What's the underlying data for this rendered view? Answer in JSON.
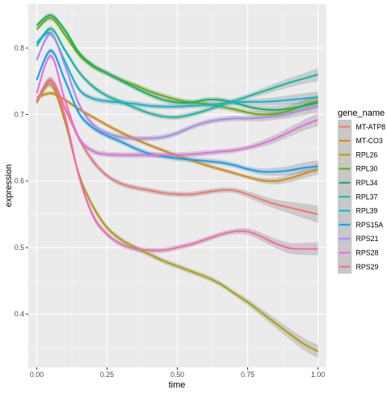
{
  "chart_data": {
    "type": "line",
    "xlabel": "time",
    "ylabel": "expression",
    "xlim": [
      -0.03,
      1.03
    ],
    "ylim": [
      0.32,
      0.866
    ],
    "x_ticks": [
      "0.00",
      "0.25",
      "0.50",
      "0.75",
      "1.00"
    ],
    "x_tick_values": [
      0,
      0.25,
      0.5,
      0.75,
      1.0
    ],
    "y_ticks": [
      "0.4",
      "0.5",
      "0.6",
      "0.7",
      "0.8"
    ],
    "y_tick_values": [
      0.4,
      0.5,
      0.6,
      0.7,
      0.8
    ],
    "grid": true,
    "background": "#ebebeb",
    "legend": {
      "title": "gene_name",
      "position": "right"
    },
    "x": [
      0.0,
      0.05,
      0.1,
      0.15,
      0.2,
      0.25,
      0.3,
      0.35,
      0.4,
      0.45,
      0.5,
      0.55,
      0.6,
      0.65,
      0.7,
      0.75,
      0.8,
      0.85,
      0.9,
      0.95,
      1.0
    ],
    "series": [
      {
        "name": "MT-ATP8",
        "color": "#F8766D",
        "values": [
          0.72,
          0.752,
          0.71,
          0.664,
          0.63,
          0.608,
          0.596,
          0.59,
          0.586,
          0.582,
          0.58,
          0.58,
          0.583,
          0.586,
          0.586,
          0.58,
          0.572,
          0.565,
          0.56,
          0.555,
          0.55
        ],
        "band": [
          0.004,
          0.005,
          0.005,
          0.005,
          0.005,
          0.004,
          0.004,
          0.004,
          0.004,
          0.004,
          0.004,
          0.004,
          0.004,
          0.004,
          0.004,
          0.005,
          0.006,
          0.007,
          0.009,
          0.011,
          0.013
        ]
      },
      {
        "name": "MT-CO3",
        "color": "#DB8E00",
        "values": [
          0.725,
          0.732,
          0.722,
          0.708,
          0.696,
          0.684,
          0.673,
          0.663,
          0.654,
          0.646,
          0.638,
          0.631,
          0.624,
          0.618,
          0.612,
          0.606,
          0.601,
          0.6,
          0.604,
          0.611,
          0.618
        ],
        "band": [
          0.003,
          0.003,
          0.003,
          0.003,
          0.003,
          0.003,
          0.003,
          0.003,
          0.003,
          0.003,
          0.003,
          0.003,
          0.003,
          0.003,
          0.003,
          0.003,
          0.004,
          0.005,
          0.006,
          0.007,
          0.008
        ]
      },
      {
        "name": "RPL26",
        "color": "#AEA200",
        "values": [
          0.718,
          0.745,
          0.69,
          0.61,
          0.562,
          0.53,
          0.512,
          0.5,
          0.49,
          0.48,
          0.472,
          0.464,
          0.456,
          0.446,
          0.432,
          0.418,
          0.402,
          0.386,
          0.37,
          0.355,
          0.344
        ],
        "band": [
          0.004,
          0.005,
          0.005,
          0.005,
          0.005,
          0.004,
          0.004,
          0.004,
          0.004,
          0.004,
          0.004,
          0.004,
          0.004,
          0.004,
          0.004,
          0.005,
          0.006,
          0.007,
          0.008,
          0.009,
          0.01
        ]
      },
      {
        "name": "RPL30",
        "color": "#64B200",
        "values": [
          0.828,
          0.845,
          0.82,
          0.79,
          0.772,
          0.762,
          0.752,
          0.744,
          0.735,
          0.728,
          0.722,
          0.718,
          0.716,
          0.712,
          0.708,
          0.703,
          0.7,
          0.701,
          0.706,
          0.714,
          0.72
        ],
        "band": [
          0.003,
          0.004,
          0.004,
          0.004,
          0.004,
          0.004,
          0.004,
          0.004,
          0.004,
          0.004,
          0.004,
          0.004,
          0.004,
          0.004,
          0.004,
          0.004,
          0.005,
          0.006,
          0.007,
          0.008,
          0.009
        ]
      },
      {
        "name": "RPL34",
        "color": "#00BD5C",
        "values": [
          0.834,
          0.849,
          0.827,
          0.793,
          0.774,
          0.762,
          0.751,
          0.74,
          0.73,
          0.722,
          0.718,
          0.718,
          0.722,
          0.722,
          0.718,
          0.712,
          0.708,
          0.707,
          0.709,
          0.713,
          0.718
        ],
        "band": [
          0.003,
          0.004,
          0.004,
          0.004,
          0.004,
          0.004,
          0.004,
          0.004,
          0.004,
          0.004,
          0.004,
          0.004,
          0.004,
          0.004,
          0.004,
          0.004,
          0.005,
          0.006,
          0.007,
          0.008,
          0.009
        ]
      },
      {
        "name": "RPL37",
        "color": "#00C1A7",
        "values": [
          0.803,
          0.829,
          0.797,
          0.764,
          0.742,
          0.728,
          0.719,
          0.71,
          0.702,
          0.697,
          0.696,
          0.7,
          0.706,
          0.713,
          0.72,
          0.727,
          0.734,
          0.741,
          0.748,
          0.754,
          0.76
        ],
        "band": [
          0.003,
          0.004,
          0.004,
          0.004,
          0.004,
          0.004,
          0.004,
          0.004,
          0.004,
          0.004,
          0.004,
          0.004,
          0.004,
          0.004,
          0.004,
          0.004,
          0.005,
          0.006,
          0.007,
          0.008,
          0.01
        ]
      },
      {
        "name": "RPL39",
        "color": "#00BADE",
        "values": [
          0.808,
          0.822,
          0.78,
          0.738,
          0.724,
          0.72,
          0.718,
          0.716,
          0.713,
          0.712,
          0.712,
          0.713,
          0.714,
          0.716,
          0.718,
          0.719,
          0.719,
          0.72,
          0.722,
          0.724,
          0.726
        ],
        "band": [
          0.003,
          0.004,
          0.004,
          0.004,
          0.004,
          0.004,
          0.004,
          0.004,
          0.004,
          0.004,
          0.004,
          0.004,
          0.004,
          0.004,
          0.004,
          0.004,
          0.005,
          0.006,
          0.007,
          0.008,
          0.009
        ]
      },
      {
        "name": "RPS15A",
        "color": "#00A6FF",
        "values": [
          0.752,
          0.796,
          0.752,
          0.702,
          0.68,
          0.668,
          0.659,
          0.649,
          0.641,
          0.637,
          0.634,
          0.632,
          0.63,
          0.628,
          0.624,
          0.618,
          0.614,
          0.614,
          0.616,
          0.62,
          0.622
        ],
        "band": [
          0.003,
          0.004,
          0.004,
          0.004,
          0.004,
          0.004,
          0.004,
          0.004,
          0.004,
          0.004,
          0.004,
          0.004,
          0.004,
          0.004,
          0.004,
          0.004,
          0.005,
          0.006,
          0.007,
          0.008,
          0.009
        ]
      },
      {
        "name": "RPS21",
        "color": "#B385FF",
        "values": [
          0.782,
          0.821,
          0.774,
          0.716,
          0.685,
          0.672,
          0.666,
          0.664,
          0.664,
          0.666,
          0.672,
          0.681,
          0.688,
          0.692,
          0.694,
          0.694,
          0.695,
          0.698,
          0.702,
          0.707,
          0.712
        ],
        "band": [
          0.003,
          0.004,
          0.004,
          0.004,
          0.004,
          0.004,
          0.004,
          0.004,
          0.004,
          0.004,
          0.004,
          0.004,
          0.004,
          0.004,
          0.004,
          0.004,
          0.005,
          0.006,
          0.007,
          0.008,
          0.009
        ]
      },
      {
        "name": "RPS28",
        "color": "#EF67EB",
        "values": [
          0.732,
          0.788,
          0.722,
          0.665,
          0.645,
          0.64,
          0.639,
          0.639,
          0.639,
          0.639,
          0.639,
          0.64,
          0.642,
          0.644,
          0.646,
          0.65,
          0.656,
          0.664,
          0.674,
          0.684,
          0.692
        ],
        "band": [
          0.003,
          0.004,
          0.004,
          0.004,
          0.004,
          0.004,
          0.004,
          0.004,
          0.004,
          0.004,
          0.004,
          0.004,
          0.004,
          0.004,
          0.004,
          0.004,
          0.005,
          0.006,
          0.007,
          0.008,
          0.01
        ]
      },
      {
        "name": "RPS29",
        "color": "#FF63B6",
        "values": [
          0.72,
          0.75,
          0.698,
          0.608,
          0.548,
          0.52,
          0.505,
          0.498,
          0.496,
          0.496,
          0.5,
          0.505,
          0.512,
          0.519,
          0.524,
          0.524,
          0.516,
          0.506,
          0.499,
          0.498,
          0.498
        ],
        "band": [
          0.004,
          0.005,
          0.005,
          0.005,
          0.005,
          0.004,
          0.004,
          0.004,
          0.004,
          0.004,
          0.004,
          0.004,
          0.004,
          0.004,
          0.004,
          0.005,
          0.006,
          0.007,
          0.008,
          0.009,
          0.01
        ]
      }
    ]
  }
}
